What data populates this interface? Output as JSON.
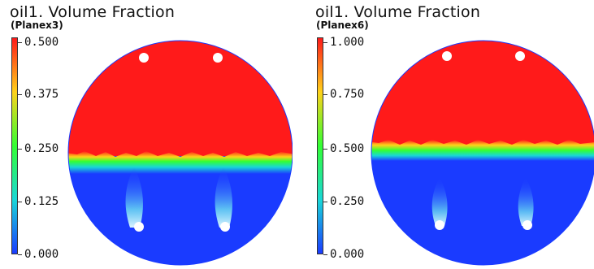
{
  "panels": [
    {
      "title": "oil1. Volume Fraction",
      "subtitle": "(Planex3)",
      "colorbar_ticks": [
        "0.500",
        "0.375",
        "0.250",
        "0.125",
        "0.000"
      ],
      "colorbar_range": [
        0.0,
        0.5
      ],
      "interface_level": 0.37,
      "holes_top": 2,
      "holes_bottom": 2
    },
    {
      "title": "oil1. Volume Fraction",
      "subtitle": "(Planex6)",
      "colorbar_ticks": [
        "1.000",
        "0.750",
        "0.500",
        "0.250",
        "0.000"
      ],
      "colorbar_range": [
        0.0,
        1.0
      ],
      "interface_level": 0.48,
      "holes_top": 2,
      "holes_bottom": 2
    }
  ],
  "colors": {
    "high": "#ff1a1a",
    "mid_high": "#ffd21a",
    "mid": "#33ff33",
    "mid_low": "#19d7d7",
    "low": "#1a3bff"
  }
}
